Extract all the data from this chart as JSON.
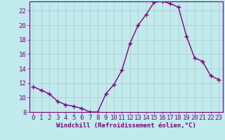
{
  "x": [
    0,
    1,
    2,
    3,
    4,
    5,
    6,
    7,
    8,
    9,
    10,
    11,
    12,
    13,
    14,
    15,
    16,
    17,
    18,
    19,
    20,
    21,
    22,
    23
  ],
  "y": [
    11.5,
    11.0,
    10.5,
    9.5,
    9.0,
    8.8,
    8.5,
    8.0,
    8.0,
    10.5,
    11.8,
    13.8,
    17.5,
    20.0,
    21.5,
    23.2,
    23.3,
    23.0,
    22.5,
    18.5,
    15.5,
    15.0,
    13.0,
    12.5
  ],
  "line_color": "#800080",
  "marker": "+",
  "bg_color": "#c0eaec",
  "grid_color": "#b0c8ca",
  "xlabel": "Windchill (Refroidissement éolien,°C)",
  "ylim": [
    8,
    23
  ],
  "xlim": [
    -0.5,
    23.5
  ],
  "yticks": [
    8,
    10,
    12,
    14,
    16,
    18,
    20,
    22
  ],
  "xticks": [
    0,
    1,
    2,
    3,
    4,
    5,
    6,
    7,
    8,
    9,
    10,
    11,
    12,
    13,
    14,
    15,
    16,
    17,
    18,
    19,
    20,
    21,
    22,
    23
  ],
  "title_color": "#800080",
  "axis_color": "#800080",
  "font_size": 6.5,
  "marker_size": 4,
  "linewidth": 1.0
}
